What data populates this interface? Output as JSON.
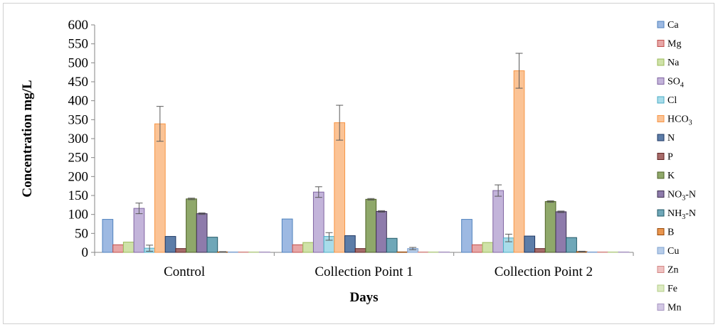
{
  "chart_data": {
    "type": "bar",
    "title": "",
    "xlabel": "Days",
    "ylabel": "Concentration mg/L",
    "ylim": [
      0,
      600
    ],
    "yticks": [
      "0",
      "50",
      "100",
      "150",
      "200",
      "250",
      "300",
      "350",
      "400",
      "450",
      "500",
      "550",
      "600"
    ],
    "grid": false,
    "legend_position": "right",
    "categories": [
      "Control",
      "Collection Point 1",
      "Collection Point 2"
    ],
    "series": [
      {
        "name": "Ca",
        "fill": "#9db9e2",
        "stroke": "#4f81bd",
        "values": [
          87,
          88,
          87
        ],
        "errors": [
          0,
          0,
          0
        ]
      },
      {
        "name": "Mg",
        "fill": "#e7a6a6",
        "stroke": "#c0504d",
        "values": [
          20,
          20,
          20
        ],
        "errors": [
          0,
          0,
          0
        ]
      },
      {
        "name": "Na",
        "fill": "#cfe2a8",
        "stroke": "#9bbb59",
        "values": [
          27,
          26,
          26
        ],
        "errors": [
          0,
          0,
          0
        ]
      },
      {
        "name": "SO4",
        "fill": "#c3b4da",
        "stroke": "#8064a2",
        "values": [
          116,
          159,
          163
        ],
        "errors": [
          14,
          14,
          15
        ]
      },
      {
        "name": "Cl",
        "fill": "#a8dcea",
        "stroke": "#4bacc6",
        "values": [
          11,
          42,
          38
        ],
        "errors": [
          8,
          10,
          10
        ]
      },
      {
        "name": "HCO3",
        "fill": "#fbc395",
        "stroke": "#f79646",
        "values": [
          339,
          342,
          479
        ],
        "errors": [
          46,
          46,
          46
        ]
      },
      {
        "name": "N",
        "fill": "#5d7da8",
        "stroke": "#1f3864",
        "values": [
          42,
          44,
          43
        ],
        "errors": [
          0,
          0,
          0
        ]
      },
      {
        "name": "P",
        "fill": "#a66b6a",
        "stroke": "#632523",
        "values": [
          10,
          10,
          10
        ],
        "errors": [
          0,
          0,
          0
        ]
      },
      {
        "name": "K",
        "fill": "#8fa86a",
        "stroke": "#4f6228",
        "values": [
          141,
          140,
          134
        ],
        "errors": [
          2,
          2,
          2
        ]
      },
      {
        "name": "NO3-N",
        "fill": "#8e7bab",
        "stroke": "#3f3151",
        "values": [
          102,
          108,
          107
        ],
        "errors": [
          2,
          2,
          2
        ]
      },
      {
        "name": "NH3-N",
        "fill": "#6fa7b8",
        "stroke": "#215967",
        "values": [
          40,
          37,
          39
        ],
        "errors": [
          0,
          0,
          0
        ]
      },
      {
        "name": "B",
        "fill": "#e9954e",
        "stroke": "#984807",
        "values": [
          1,
          1,
          2
        ],
        "errors": [
          1,
          0,
          1
        ]
      },
      {
        "name": "Cu",
        "fill": "#b8cde9",
        "stroke": "#7ea2d1",
        "values": [
          0.5,
          10,
          0.5
        ],
        "errors": [
          0,
          3,
          0
        ]
      },
      {
        "name": "Zn",
        "fill": "#efc2c2",
        "stroke": "#d48886",
        "values": [
          0.5,
          0.5,
          0.5
        ],
        "errors": [
          0,
          0,
          0
        ]
      },
      {
        "name": "Fe",
        "fill": "#dcebc1",
        "stroke": "#b5cc88",
        "values": [
          0.5,
          0.5,
          0.5
        ],
        "errors": [
          0,
          0,
          0
        ]
      },
      {
        "name": "Mn",
        "fill": "#d2c7e4",
        "stroke": "#a896c2",
        "values": [
          0.5,
          0.5,
          0.5
        ],
        "errors": [
          0,
          0,
          0
        ]
      }
    ],
    "legend": [
      {
        "base": "Ca",
        "sub": "",
        "suffix": ""
      },
      {
        "base": "Mg",
        "sub": "",
        "suffix": ""
      },
      {
        "base": "Na",
        "sub": "",
        "suffix": ""
      },
      {
        "base": "SO",
        "sub": "4",
        "suffix": ""
      },
      {
        "base": "Cl",
        "sub": "",
        "suffix": ""
      },
      {
        "base": "HCO",
        "sub": "3",
        "suffix": ""
      },
      {
        "base": "N",
        "sub": "",
        "suffix": ""
      },
      {
        "base": "P",
        "sub": "",
        "suffix": ""
      },
      {
        "base": "K",
        "sub": "",
        "suffix": ""
      },
      {
        "base": "NO",
        "sub": "3",
        "suffix": "-N"
      },
      {
        "base": "NH",
        "sub": "3",
        "suffix": "-N"
      },
      {
        "base": "B",
        "sub": "",
        "suffix": ""
      },
      {
        "base": "Cu",
        "sub": "",
        "suffix": ""
      },
      {
        "base": "Zn",
        "sub": "",
        "suffix": ""
      },
      {
        "base": "Fe",
        "sub": "",
        "suffix": ""
      },
      {
        "base": "Mn",
        "sub": "",
        "suffix": ""
      }
    ]
  }
}
